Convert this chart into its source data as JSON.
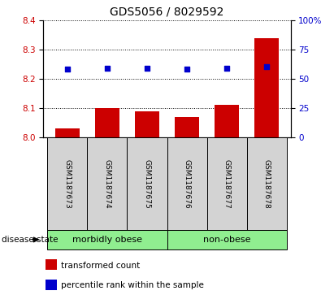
{
  "title": "GDS5056 / 8029592",
  "samples": [
    "GSM1187673",
    "GSM1187674",
    "GSM1187675",
    "GSM1187676",
    "GSM1187677",
    "GSM1187678"
  ],
  "bar_values": [
    8.03,
    8.1,
    8.09,
    8.07,
    8.11,
    8.34
  ],
  "blue_values": [
    8.233,
    8.237,
    8.237,
    8.233,
    8.237,
    8.242
  ],
  "bar_baseline": 8.0,
  "ylim": [
    8.0,
    8.4
  ],
  "yticks_left": [
    8.0,
    8.1,
    8.2,
    8.3,
    8.4
  ],
  "yticks_right": [
    0,
    25,
    50,
    75,
    100
  ],
  "bar_color": "#cc0000",
  "blue_color": "#0000cc",
  "grid_color": "#000000",
  "groups": [
    {
      "label": "morbidly obese",
      "indices": [
        0,
        1,
        2
      ]
    },
    {
      "label": "non-obese",
      "indices": [
        3,
        4,
        5
      ]
    }
  ],
  "group_color": "#90ee90",
  "sample_box_color": "#d3d3d3",
  "disease_state_label": "disease state",
  "legend_items": [
    {
      "color": "#cc0000",
      "label": "transformed count"
    },
    {
      "color": "#0000cc",
      "label": "percentile rank within the sample"
    }
  ],
  "tick_label_color_left": "#cc0000",
  "tick_label_color_right": "#0000cc",
  "bar_width": 0.6
}
